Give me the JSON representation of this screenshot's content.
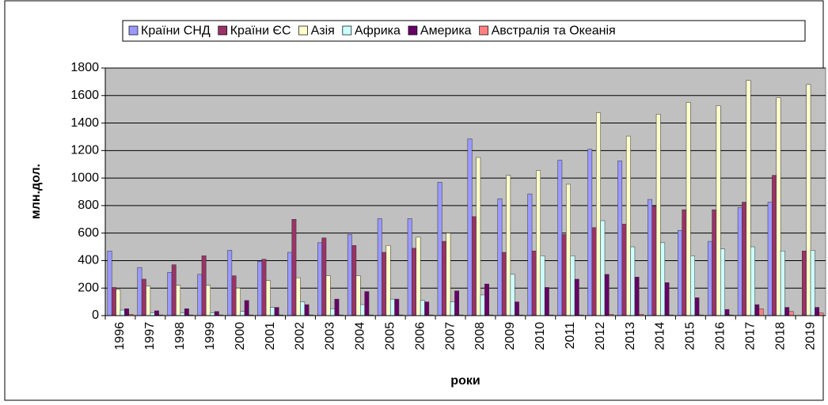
{
  "chart_data": {
    "type": "bar",
    "x_label": "роки",
    "y_label": "млн.дол.",
    "categories": [
      "1996",
      "1997",
      "1998",
      "1999",
      "2000",
      "2001",
      "2002",
      "2003",
      "2004",
      "2005",
      "2006",
      "2007",
      "2008",
      "2009",
      "2010",
      "2011",
      "2012",
      "2013",
      "2014",
      "2015",
      "2016",
      "2017",
      "2018",
      "2019"
    ],
    "series": [
      {
        "name": "Країни СНД",
        "color": "#9999FF",
        "values": [
          470,
          350,
          315,
          300,
          475,
          395,
          460,
          530,
          590,
          705,
          705,
          970,
          1285,
          850,
          885,
          1130,
          1210,
          1125,
          845,
          620,
          540,
          785,
          825,
          0
        ]
      },
      {
        "name": "Країни ЄС",
        "color": "#993366",
        "values": [
          205,
          265,
          370,
          435,
          290,
          410,
          700,
          565,
          510,
          460,
          490,
          540,
          720,
          460,
          470,
          590,
          640,
          665,
          795,
          770,
          770,
          825,
          1020,
          470
        ]
      },
      {
        "name": "Азія",
        "color": "#FFFFCC",
        "values": [
          190,
          215,
          220,
          220,
          200,
          255,
          275,
          290,
          290,
          510,
          570,
          600,
          1150,
          1020,
          1055,
          955,
          1475,
          1305,
          1465,
          1550,
          1525,
          1710,
          1585,
          1680
        ]
      },
      {
        "name": "Африка",
        "color": "#CCFFFF",
        "values": [
          40,
          20,
          20,
          20,
          30,
          60,
          100,
          50,
          80,
          120,
          110,
          100,
          150,
          300,
          435,
          435,
          690,
          500,
          530,
          435,
          485,
          500,
          470,
          475
        ]
      },
      {
        "name": "Америка",
        "color": "#660066",
        "values": [
          50,
          35,
          50,
          30,
          110,
          60,
          80,
          120,
          175,
          120,
          100,
          180,
          230,
          100,
          205,
          265,
          300,
          280,
          240,
          130,
          45,
          80,
          60,
          60
        ]
      },
      {
        "name": "Австралія та Океанія",
        "color": "#FF8080",
        "values": [
          10,
          5,
          5,
          5,
          5,
          5,
          5,
          5,
          5,
          5,
          5,
          5,
          5,
          5,
          5,
          5,
          10,
          10,
          5,
          5,
          5,
          50,
          30,
          20
        ]
      }
    ],
    "ylim": [
      0,
      1800
    ],
    "yticks": [
      0,
      200,
      400,
      600,
      800,
      1000,
      1200,
      1400,
      1600,
      1800
    ],
    "grid": true,
    "legend": "top"
  }
}
